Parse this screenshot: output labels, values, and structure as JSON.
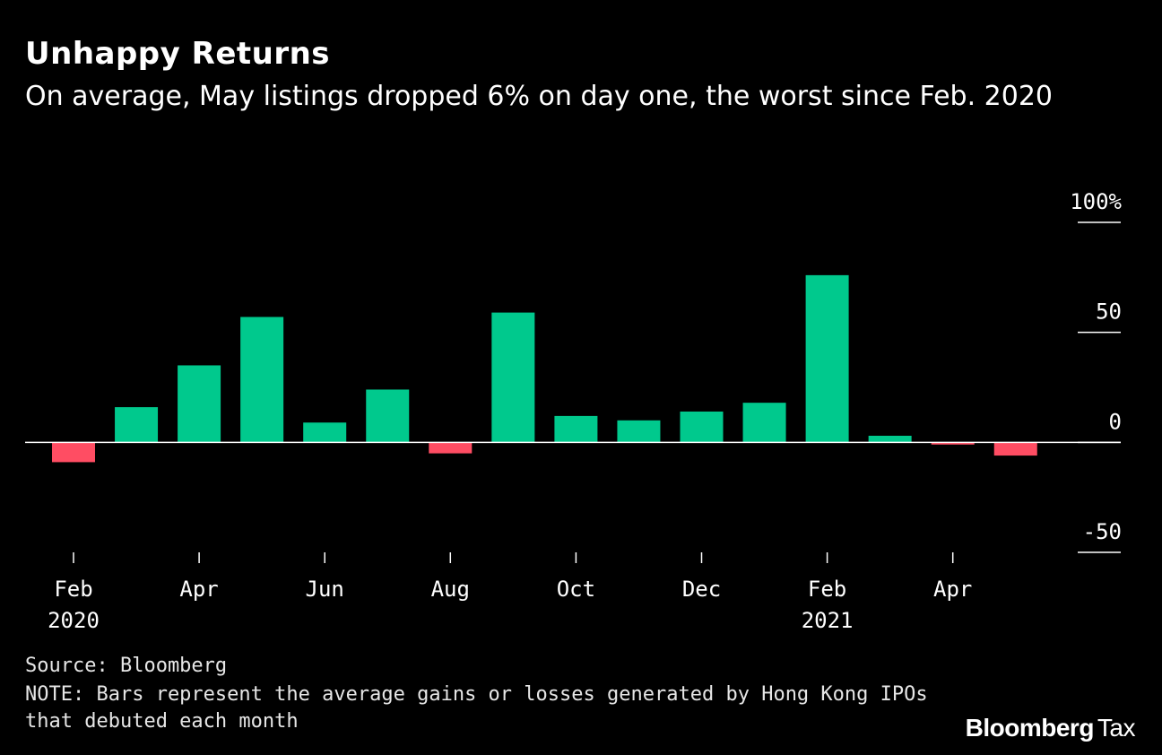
{
  "chart_data": {
    "type": "bar",
    "title": "Unhappy Returns",
    "subtitle": "On average, May listings dropped 6% on day one, the worst since Feb. 2020",
    "categories": [
      "Feb 2020",
      "Mar 2020",
      "Apr 2020",
      "May 2020",
      "Jun 2020",
      "Jul 2020",
      "Aug 2020",
      "Sep 2020",
      "Oct 2020",
      "Nov 2020",
      "Dec 2020",
      "Jan 2021",
      "Feb 2021",
      "Mar 2021",
      "Apr 2021",
      "May 2021"
    ],
    "values": [
      -9,
      16,
      35,
      57,
      9,
      24,
      -5,
      59,
      12,
      10,
      14,
      18,
      76,
      3,
      -1,
      -6
    ],
    "ylim": [
      -50,
      100
    ],
    "yticks": [
      100,
      50,
      0,
      -50
    ],
    "ytick_labels": [
      "100%",
      "50",
      "0",
      "-50"
    ],
    "xticks": [
      {
        "index": 0,
        "label": "Feb",
        "sublabel": "2020"
      },
      {
        "index": 2,
        "label": "Apr",
        "sublabel": ""
      },
      {
        "index": 4,
        "label": "Jun",
        "sublabel": ""
      },
      {
        "index": 6,
        "label": "Aug",
        "sublabel": ""
      },
      {
        "index": 8,
        "label": "Oct",
        "sublabel": ""
      },
      {
        "index": 10,
        "label": "Dec",
        "sublabel": ""
      },
      {
        "index": 12,
        "label": "Feb",
        "sublabel": "2021"
      },
      {
        "index": 14,
        "label": "Apr",
        "sublabel": ""
      }
    ],
    "colors": {
      "positive": "#00c98d",
      "negative": "#ff4d63",
      "axis": "#ffffff"
    },
    "xlabel": "",
    "ylabel": ""
  },
  "source": "Source: Bloomberg",
  "note": "NOTE: Bars represent the average gains or losses generated by Hong Kong IPOs that debuted each month",
  "brand": {
    "name": "Bloomberg",
    "suffix": "Tax"
  }
}
